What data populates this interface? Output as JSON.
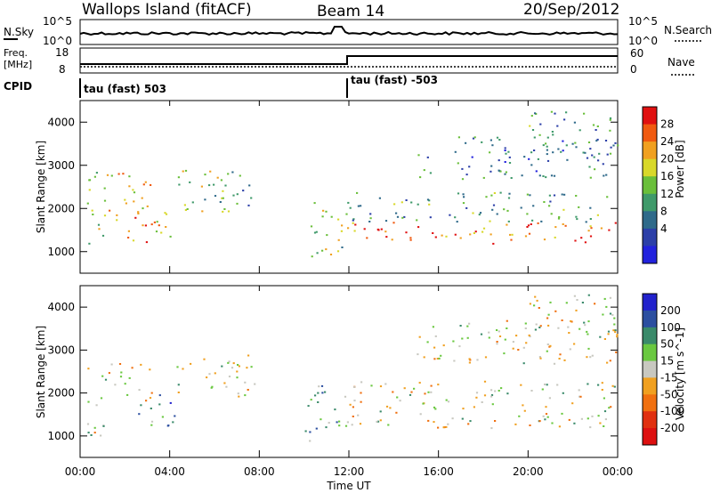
{
  "header": {
    "title": "Wallops Island (fitACF)",
    "beam": "Beam 14",
    "date": "20/Sep/2012"
  },
  "strip_sky": {
    "left_label": "N.Sky",
    "right_label": "N.Search",
    "left_ticks": [
      "10^5",
      "10^0"
    ],
    "right_ticks": [
      "10^5",
      "10^0"
    ]
  },
  "strip_freq": {
    "left_label_top": "Freq.",
    "left_label_bottom": "[MHz]",
    "right_label": "Nave",
    "left_ticks": [
      "18",
      "8"
    ],
    "right_ticks": [
      "60",
      "0"
    ]
  },
  "strip_cpid": {
    "label": "CPID",
    "program_left": "tau (fast) 503",
    "program_right": "tau (fast) -503"
  },
  "chart_data": [
    {
      "type": "heatmap",
      "panel": "power",
      "xlabel": "Time UT",
      "ylabel": "Slant Range [km]",
      "x_ticks": [
        "00:00",
        "04:00",
        "08:00",
        "12:00",
        "16:00",
        "20:00",
        "00:00"
      ],
      "y_ticks": [
        1000,
        2000,
        3000,
        4000
      ],
      "ylim": [
        500,
        4500
      ],
      "colorbar": {
        "label": "Power [dB]",
        "ticks": [
          4,
          8,
          12,
          16,
          20,
          24,
          28
        ],
        "colors": [
          "#2222dd",
          "#2c3fa8",
          "#2f6a8a",
          "#3f9a6a",
          "#6abf3a",
          "#d8d82a",
          "#f0a020",
          "#f05a10",
          "#e01010"
        ]
      },
      "regions": [
        {
          "t": [
            0.3,
            1.0
          ],
          "r": [
            950,
            2900
          ],
          "level": 0.55
        },
        {
          "t": [
            1.0,
            3.2
          ],
          "r": [
            1700,
            2900
          ],
          "level": 0.6
        },
        {
          "t": [
            2.0,
            4.2
          ],
          "r": [
            1200,
            2100
          ],
          "level": 0.7
        },
        {
          "t": [
            4.3,
            6.8
          ],
          "r": [
            1900,
            2900
          ],
          "level": 0.55
        },
        {
          "t": [
            6.2,
            7.8
          ],
          "r": [
            1900,
            2900
          ],
          "level": 0.4
        },
        {
          "t": [
            10.0,
            12.0
          ],
          "r": [
            900,
            2200
          ],
          "level": 0.55
        },
        {
          "t": [
            12.0,
            24.0
          ],
          "r": [
            1200,
            1700
          ],
          "level": 0.8
        },
        {
          "t": [
            12.0,
            24.0
          ],
          "r": [
            1700,
            2400
          ],
          "level": 0.4
        },
        {
          "t": [
            15.0,
            24.0
          ],
          "r": [
            2700,
            3700
          ],
          "level": 0.3
        },
        {
          "t": [
            20.0,
            24.0
          ],
          "r": [
            3300,
            4300
          ],
          "level": 0.35
        }
      ]
    },
    {
      "type": "heatmap",
      "panel": "velocity",
      "xlabel": "Time UT",
      "ylabel": "Slant Range [km]",
      "x_ticks": [
        "00:00",
        "04:00",
        "08:00",
        "12:00",
        "16:00",
        "20:00",
        "00:00"
      ],
      "y_ticks": [
        1000,
        2000,
        3000,
        4000
      ],
      "ylim": [
        500,
        4500
      ],
      "colorbar": {
        "label": "Velocity [m s^-1]",
        "ticks": [
          200,
          100,
          50,
          15,
          -15,
          -50,
          -100,
          -200
        ],
        "colors": [
          "#2222cc",
          "#2c4fa0",
          "#3a8a6a",
          "#6ac840",
          "#c8c8c0",
          "#f0a020",
          "#f07010",
          "#e03010",
          "#dd1010"
        ]
      },
      "regions": [
        {
          "t": [
            0.3,
            1.2
          ],
          "r": [
            1000,
            2700
          ],
          "level": 0.48
        },
        {
          "t": [
            1.2,
            3.2
          ],
          "r": [
            1800,
            2700
          ],
          "level": 0.55
        },
        {
          "t": [
            2.4,
            4.2
          ],
          "r": [
            1200,
            2000
          ],
          "level": 0.3
        },
        {
          "t": [
            4.3,
            7.8
          ],
          "r": [
            1900,
            2900
          ],
          "level": 0.5
        },
        {
          "t": [
            10.0,
            12.0
          ],
          "r": [
            900,
            2200
          ],
          "level": 0.35
        },
        {
          "t": [
            12.0,
            24.0
          ],
          "r": [
            1200,
            1800
          ],
          "level": 0.5
        },
        {
          "t": [
            12.0,
            24.0
          ],
          "r": [
            1800,
            2300
          ],
          "level": 0.5
        },
        {
          "t": [
            15.0,
            24.0
          ],
          "r": [
            2700,
            3700
          ],
          "level": 0.52
        },
        {
          "t": [
            20.0,
            24.0
          ],
          "r": [
            3300,
            4300
          ],
          "level": 0.5
        }
      ]
    }
  ]
}
